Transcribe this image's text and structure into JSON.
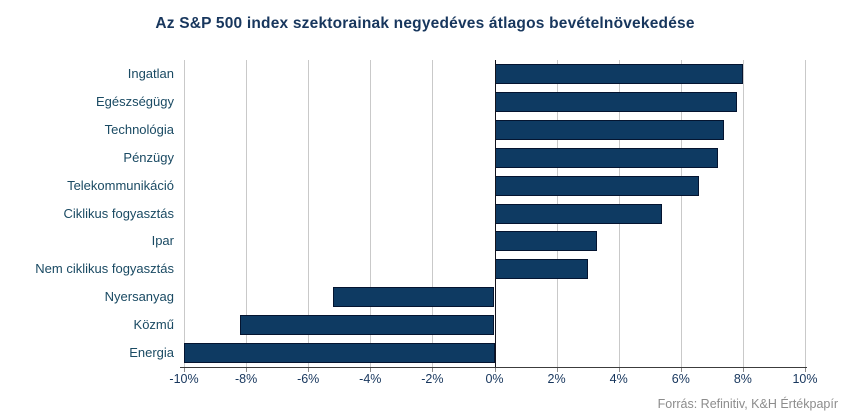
{
  "chart_data": {
    "type": "bar",
    "orientation": "horizontal",
    "title": "Az S&P 500 index szektorainak negyedéves átlagos bevételnövekedése",
    "categories": [
      "Ingatlan",
      "Egészségügy",
      "Technológia",
      "Pénzügy",
      "Telekommunikáció",
      "Ciklikus fogyasztás",
      "Ipar",
      "Nem ciklikus fogyasztás",
      "Nyersanyag",
      "Közmű",
      "Energia"
    ],
    "values": [
      8.0,
      7.8,
      7.4,
      7.2,
      6.6,
      5.4,
      3.3,
      3.0,
      -5.2,
      -8.2,
      -10.0
    ],
    "value_unit": "%",
    "xlabel": "",
    "ylabel": "",
    "xlim": [
      -10,
      10
    ],
    "x_ticks": [
      {
        "label": "-10%",
        "value": -10
      },
      {
        "label": "-8%",
        "value": -8
      },
      {
        "label": "-6%",
        "value": -6
      },
      {
        "label": "-4%",
        "value": -4
      },
      {
        "label": "-2%",
        "value": -2
      },
      {
        "label": "0%",
        "value": 0
      },
      {
        "label": "2%",
        "value": 2
      },
      {
        "label": "4%",
        "value": 4
      },
      {
        "label": "6%",
        "value": 6
      },
      {
        "label": "8%",
        "value": 8
      },
      {
        "label": "10%",
        "value": 10
      }
    ],
    "grid": "vertical-on",
    "legend": "none",
    "colors": {
      "bar_fill": "#0e3a62",
      "bar_border": "#041430",
      "gridline": "#c9c9c9",
      "zero_line": "#14141e",
      "axis_line": "#3c3c3c",
      "title_text": "#17365d",
      "category_text": "#1a4a63",
      "tick_text": "#17365d",
      "source_text": "#8c8c8c"
    }
  },
  "footer": {
    "source": "Forrás: Refinitiv, K&H Értékpapír"
  }
}
